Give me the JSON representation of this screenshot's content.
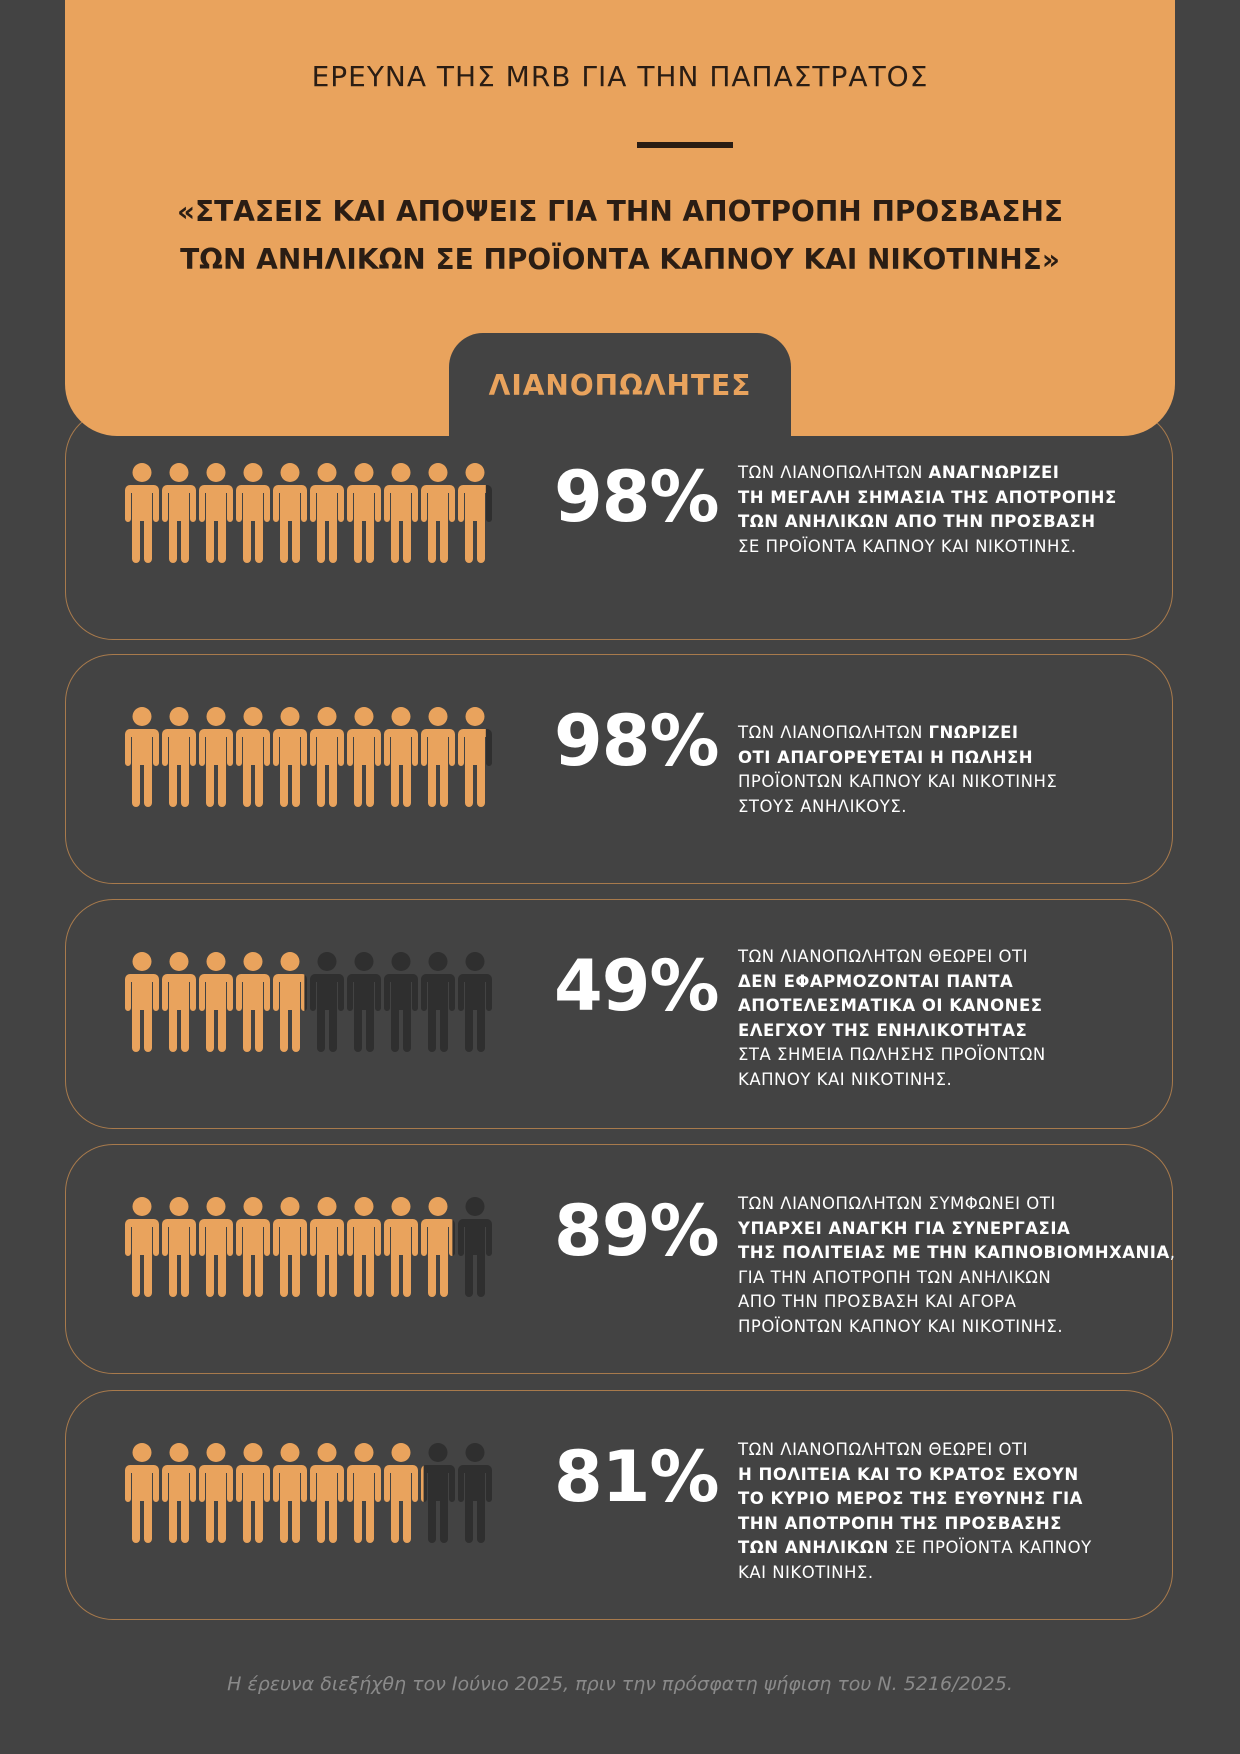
{
  "header": {
    "survey_label": "ΕΡΕΥΝΑ ΤΗΣ MRB ΓΙΑ ΤΗΝ ΠΑΠΑΣΤΡΑΤΟΣ",
    "title_line1": "«ΣΤΑΣΕΙΣ ΚΑΙ ΑΠΟΨΕΙΣ ΓΙΑ ΤΗΝ ΑΠΟΤΡΟΠΗ ΠΡΟΣΒΑΣΗΣ",
    "title_line2": "ΤΩΝ ΑΝΗΛΙΚΩΝ ΣΕ ΠΡΟΪΟΝΤΑ ΚΑΠΝΟΥ ΚΑΙ ΝΙΚΟΤΙΝΗΣ»",
    "tab_label": "ΛΙΑΝΟΠΩΛΗΤΕΣ"
  },
  "colors": {
    "accent": "#E9A35D",
    "background": "#434343",
    "dark_text": "#2a1d14",
    "empty_icon": "#2f2f2f"
  },
  "icon": "person-icon",
  "stats": [
    {
      "percent_label": "98%",
      "value": 98,
      "lines": [
        [
          {
            "t": "ΤΩΝ ΛΙΑΝΟΠΩΛΗΤΩΝ ",
            "b": false
          },
          {
            "t": "ΑΝΑΓΝΩΡΙΖΕΙ",
            "b": true
          }
        ],
        [
          {
            "t": "ΤΗ ΜΕΓΑΛΗ ΣΗΜΑΣΙΑ ΤΗΣ ΑΠΟΤΡΟΠΗΣ",
            "b": true
          }
        ],
        [
          {
            "t": "ΤΩΝ ΑΝΗΛΙΚΩΝ ΑΠΟ ΤΗΝ ΠΡΟΣΒΑΣΗ",
            "b": true
          }
        ],
        [
          {
            "t": "ΣΕ ΠΡΟΪΟΝΤΑ ΚΑΠΝΟΥ ΚΑΙ ΝΙΚΟΤΙΝΗΣ.",
            "b": false
          }
        ]
      ]
    },
    {
      "percent_label": "98%",
      "value": 98,
      "lines": [
        [
          {
            "t": "ΤΩΝ ΛΙΑΝΟΠΩΛΗΤΩΝ ",
            "b": false
          },
          {
            "t": "ΓΝΩΡΙΖΕΙ",
            "b": true
          }
        ],
        [
          {
            "t": "ΟΤΙ ΑΠΑΓΟΡΕΥΕΤΑΙ Η ΠΩΛΗΣΗ",
            "b": true
          }
        ],
        [
          {
            "t": "ΠΡΟΪΟΝΤΩΝ ΚΑΠΝΟΥ ΚΑΙ ΝΙΚΟΤΙΝΗΣ",
            "b": false
          }
        ],
        [
          {
            "t": "ΣΤΟΥΣ ΑΝΗΛΙΚΟΥΣ.",
            "b": false
          }
        ]
      ]
    },
    {
      "percent_label": "49%",
      "value": 49,
      "lines": [
        [
          {
            "t": "ΤΩΝ ΛΙΑΝΟΠΩΛΗΤΩΝ ΘΕΩΡΕΙ ΟΤΙ",
            "b": false
          }
        ],
        [
          {
            "t": "ΔΕΝ ΕΦΑΡΜΟΖΟΝΤΑΙ ΠΑΝΤΑ",
            "b": true
          }
        ],
        [
          {
            "t": "ΑΠΟΤΕΛΕΣΜΑΤΙΚΑ ΟΙ ΚΑΝΟΝΕΣ",
            "b": true
          }
        ],
        [
          {
            "t": "ΕΛΕΓΧΟΥ ΤΗΣ ΕΝΗΛΙΚΟΤΗΤΑΣ",
            "b": true
          }
        ],
        [
          {
            "t": "ΣΤΑ ΣΗΜΕΙΑ ΠΩΛΗΣΗΣ ΠΡΟΪΟΝΤΩΝ",
            "b": false
          }
        ],
        [
          {
            "t": "ΚΑΠΝΟΥ ΚΑΙ ΝΙΚΟΤΙΝΗΣ.",
            "b": false
          }
        ]
      ]
    },
    {
      "percent_label": "89%",
      "value": 89,
      "lines": [
        [
          {
            "t": "ΤΩΝ ΛΙΑΝΟΠΩΛΗΤΩΝ ΣΥΜΦΩΝΕΙ ΟΤΙ",
            "b": false
          }
        ],
        [
          {
            "t": "ΥΠΑΡΧΕΙ ΑΝΑΓΚΗ ΓΙΑ ΣΥΝΕΡΓΑΣΙΑ",
            "b": true
          }
        ],
        [
          {
            "t": "ΤΗΣ ΠΟΛΙΤΕΙΑΣ ΜΕ ΤΗΝ ΚΑΠΝΟΒΙΟΜΗΧΑΝΙΑ",
            "b": true
          },
          {
            "t": ",",
            "b": false
          }
        ],
        [
          {
            "t": "ΓΙΑ ΤΗΝ ΑΠΟΤΡΟΠΗ ΤΩΝ ΑΝΗΛΙΚΩΝ",
            "b": false
          }
        ],
        [
          {
            "t": "ΑΠΟ ΤΗΝ ΠΡΟΣΒΑΣΗ ΚΑΙ ΑΓΟΡΑ",
            "b": false
          }
        ],
        [
          {
            "t": "ΠΡΟΪΟΝΤΩΝ ΚΑΠΝΟΥ ΚΑΙ ΝΙΚΟΤΙΝΗΣ.",
            "b": false
          }
        ]
      ]
    },
    {
      "percent_label": "81%",
      "value": 81,
      "lines": [
        [
          {
            "t": "ΤΩΝ ΛΙΑΝΟΠΩΛΗΤΩΝ ΘΕΩΡΕΙ ΟΤΙ",
            "b": false
          }
        ],
        [
          {
            "t": "Η ΠΟΛΙΤΕΙΑ ΚΑΙ ΤΟ ΚΡΑΤΟΣ ΕΧΟΥΝ",
            "b": true
          }
        ],
        [
          {
            "t": "ΤΟ ΚΥΡΙΟ ΜΕΡΟΣ ΤΗΣ ΕΥΘΥΝΗΣ ΓΙΑ",
            "b": true
          }
        ],
        [
          {
            "t": "ΤΗΝ ΑΠΟΤΡΟΠΗ ΤΗΣ ΠΡΟΣΒΑΣΗΣ",
            "b": true
          }
        ],
        [
          {
            "t": "ΤΩΝ ΑΝΗΛΙΚΩΝ",
            "b": true
          },
          {
            "t": " ΣΕ ΠΡΟΪΟΝΤΑ ΚΑΠΝΟΥ",
            "b": false
          }
        ],
        [
          {
            "t": "ΚΑΙ ΝΙΚΟΤΙΝΗΣ.",
            "b": false
          }
        ]
      ]
    }
  ],
  "footer": "Η έρευνα διεξήχθη τον Ιούνιο 2025, πριν την πρόσφατη ψήφιση του Ν. 5216/2025."
}
